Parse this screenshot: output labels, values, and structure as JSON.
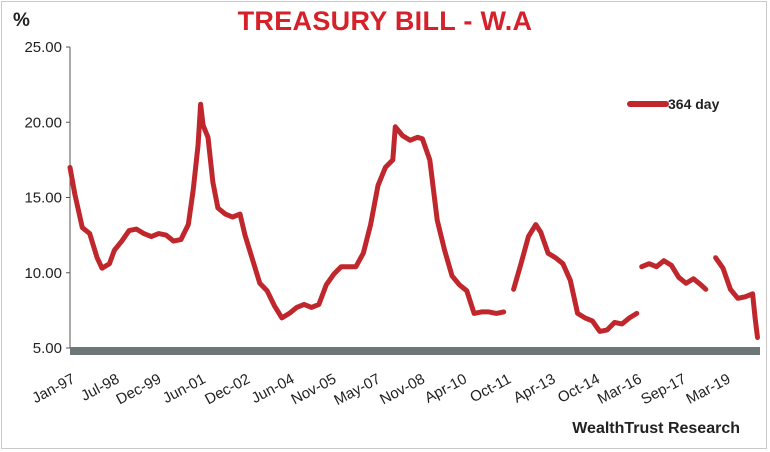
{
  "title": "TREASURY BILL - W.A",
  "unit_label": "%",
  "credit": "WealthTrust Research",
  "chart_data": {
    "type": "line",
    "title": "TREASURY BILL - W.A",
    "xlabel": "",
    "ylabel": "%",
    "ylim": [
      5,
      25
    ],
    "y_ticks": [
      "5.00",
      "10.00",
      "15.00",
      "20.00",
      "25.00"
    ],
    "x_ticks": [
      "Jan-97",
      "Jul-98",
      "Dec-99",
      "Jun-01",
      "Dec-02",
      "Jun-04",
      "Nov-05",
      "May-07",
      "Nov-08",
      "Apr-10",
      "Oct-11",
      "Apr-13",
      "Oct-14",
      "Mar-16",
      "Sep-17",
      "Mar-19"
    ],
    "legend_position": "top-right",
    "grid": false,
    "series": [
      {
        "name": "364 day",
        "color": "#c0272d",
        "segments": [
          [
            [
              "1997-01",
              17.0
            ],
            [
              "1997-03",
              15.2
            ],
            [
              "1997-06",
              13.0
            ],
            [
              "1997-09",
              12.6
            ],
            [
              "1997-12",
              11.0
            ],
            [
              "1998-02",
              10.3
            ],
            [
              "1998-05",
              10.6
            ],
            [
              "1998-07",
              11.5
            ],
            [
              "1998-10",
              12.1
            ],
            [
              "1999-01",
              12.8
            ],
            [
              "1999-04",
              12.9
            ],
            [
              "1999-07",
              12.6
            ],
            [
              "1999-10",
              12.4
            ],
            [
              "2000-01",
              12.6
            ],
            [
              "2000-04",
              12.5
            ],
            [
              "2000-07",
              12.1
            ],
            [
              "2000-10",
              12.2
            ],
            [
              "2001-01",
              13.2
            ],
            [
              "2001-03",
              15.5
            ],
            [
              "2001-05",
              18.5
            ],
            [
              "2001-06",
              21.2
            ],
            [
              "2001-07",
              19.8
            ],
            [
              "2001-09",
              19.0
            ],
            [
              "2001-11",
              16.0
            ],
            [
              "2002-01",
              14.3
            ],
            [
              "2002-04",
              13.9
            ],
            [
              "2002-07",
              13.7
            ],
            [
              "2002-10",
              13.9
            ],
            [
              "2002-12",
              12.5
            ],
            [
              "2003-03",
              10.9
            ],
            [
              "2003-06",
              9.3
            ],
            [
              "2003-09",
              8.8
            ],
            [
              "2003-12",
              7.8
            ],
            [
              "2004-03",
              7.0
            ],
            [
              "2004-06",
              7.3
            ],
            [
              "2004-09",
              7.7
            ],
            [
              "2004-12",
              7.9
            ],
            [
              "2005-03",
              7.7
            ],
            [
              "2005-06",
              7.9
            ],
            [
              "2005-09",
              9.2
            ],
            [
              "2005-12",
              9.9
            ],
            [
              "2006-03",
              10.4
            ],
            [
              "2006-06",
              10.4
            ],
            [
              "2006-09",
              10.4
            ],
            [
              "2006-12",
              11.3
            ],
            [
              "2007-03",
              13.2
            ],
            [
              "2007-06",
              15.8
            ],
            [
              "2007-09",
              17.0
            ],
            [
              "2007-12",
              17.5
            ],
            [
              "2008-01",
              19.7
            ],
            [
              "2008-04",
              19.1
            ],
            [
              "2008-07",
              18.8
            ],
            [
              "2008-10",
              19.0
            ],
            [
              "2008-12",
              18.9
            ],
            [
              "2009-03",
              17.5
            ],
            [
              "2009-06",
              13.5
            ],
            [
              "2009-09",
              11.5
            ],
            [
              "2009-12",
              9.8
            ],
            [
              "2010-03",
              9.2
            ],
            [
              "2010-06",
              8.8
            ],
            [
              "2010-09",
              7.3
            ],
            [
              "2010-12",
              7.4
            ],
            [
              "2011-03",
              7.4
            ],
            [
              "2011-06",
              7.3
            ],
            [
              "2011-09",
              7.4
            ]
          ],
          [
            [
              "2012-01",
              8.9
            ],
            [
              "2012-04",
              10.6
            ],
            [
              "2012-07",
              12.4
            ],
            [
              "2012-10",
              13.2
            ],
            [
              "2012-12",
              12.7
            ],
            [
              "2013-03",
              11.3
            ],
            [
              "2013-06",
              11.0
            ],
            [
              "2013-09",
              10.6
            ],
            [
              "2013-12",
              9.5
            ],
            [
              "2014-03",
              7.3
            ],
            [
              "2014-06",
              7.0
            ],
            [
              "2014-09",
              6.8
            ],
            [
              "2014-12",
              6.1
            ],
            [
              "2015-03",
              6.2
            ],
            [
              "2015-06",
              6.7
            ],
            [
              "2015-09",
              6.6
            ],
            [
              "2015-12",
              7.0
            ],
            [
              "2016-03",
              7.3
            ]
          ],
          [
            [
              "2016-05",
              10.4
            ],
            [
              "2016-08",
              10.6
            ],
            [
              "2016-11",
              10.4
            ],
            [
              "2017-02",
              10.8
            ],
            [
              "2017-05",
              10.5
            ],
            [
              "2017-08",
              9.7
            ],
            [
              "2017-11",
              9.3
            ],
            [
              "2018-02",
              9.6
            ],
            [
              "2018-05",
              9.2
            ],
            [
              "2018-07",
              8.9
            ]
          ],
          [
            [
              "2018-11",
              11.0
            ],
            [
              "2019-02",
              10.3
            ],
            [
              "2019-05",
              8.9
            ],
            [
              "2019-08",
              8.3
            ],
            [
              "2019-11",
              8.4
            ],
            [
              "2020-02",
              8.6
            ],
            [
              "2020-03",
              7.0
            ],
            [
              "2020-04",
              5.7
            ]
          ]
        ]
      }
    ]
  }
}
